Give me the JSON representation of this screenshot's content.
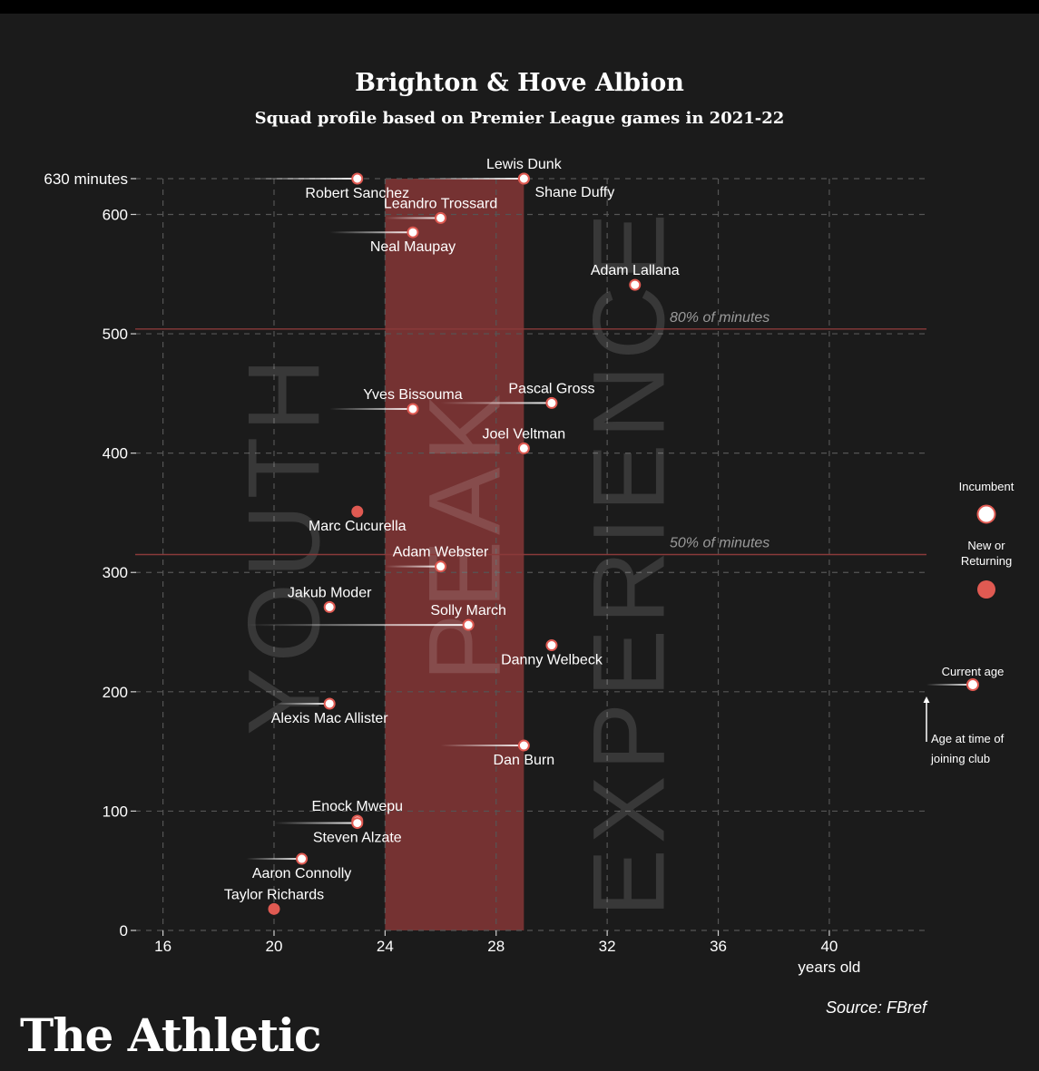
{
  "header": {
    "title": "Brighton & Hove Albion",
    "subtitle": "Squad profile based on Premier League games in 2021-22"
  },
  "footer": {
    "source": "Source: FBref",
    "brand": "The Athletic"
  },
  "colors": {
    "background": "#1b1b1b",
    "peak_band": "#7a3434",
    "new_marker": "#e05a52",
    "threshold_line": "#8a3a3a",
    "grid": "#555555"
  },
  "legend": {
    "incumbent": "Incumbent",
    "new_or_returning": [
      "New or",
      "Returning"
    ],
    "current_age": "Current age",
    "joining_age": [
      "Age at time of",
      "joining club"
    ]
  },
  "chart_data": {
    "type": "scatter",
    "title": "Brighton & Hove Albion",
    "subtitle": "Squad profile based on Premier League games in 2021-22",
    "xlabel": "years old",
    "ylabel": "",
    "xlim": [
      15,
      43.5
    ],
    "ylim": [
      0,
      630
    ],
    "x_ticks": [
      16,
      20,
      24,
      28,
      32,
      36,
      40
    ],
    "y_ticks": [
      0,
      100,
      200,
      300,
      400,
      500,
      600
    ],
    "y_top_label": "630 minutes",
    "y_top_value": 630,
    "grid": true,
    "peak_band": {
      "from": 24,
      "to": 29
    },
    "zones": [
      "YOUTH",
      "PEAK",
      "EXPERIENCE"
    ],
    "thresholds": [
      {
        "label": "80% of minutes",
        "value": 504
      },
      {
        "label": "50% of minutes",
        "value": 315
      }
    ],
    "players": [
      {
        "name": "Lewis Dunk",
        "age": 29,
        "joined_age": 29,
        "minutes": 630,
        "new": true,
        "label_pos": "above"
      },
      {
        "name": "Robert Sanchez",
        "age": 23,
        "joined_age": 19,
        "minutes": 630,
        "new": false,
        "label_pos": "below"
      },
      {
        "name": "Shane Duffy",
        "age": 29,
        "joined_age": 25,
        "minutes": 630,
        "new": false,
        "label_pos": "below-right"
      },
      {
        "name": "Leandro Trossard",
        "age": 26,
        "joined_age": 24,
        "minutes": 597,
        "new": false,
        "label_pos": "above"
      },
      {
        "name": "Neal Maupay",
        "age": 25,
        "joined_age": 22,
        "minutes": 585,
        "new": false,
        "label_pos": "below"
      },
      {
        "name": "Adam Lallana",
        "age": 33,
        "joined_age": 33,
        "minutes": 541,
        "new": false,
        "label_pos": "above"
      },
      {
        "name": "Pascal Gross",
        "age": 30,
        "joined_age": 26,
        "minutes": 442,
        "new": false,
        "label_pos": "above"
      },
      {
        "name": "Yves Bissouma",
        "age": 25,
        "joined_age": 22,
        "minutes": 437,
        "new": false,
        "label_pos": "above"
      },
      {
        "name": "Joel Veltman",
        "age": 29,
        "joined_age": 29,
        "minutes": 404,
        "new": false,
        "label_pos": "above"
      },
      {
        "name": "Marc Cucurella",
        "age": 23,
        "joined_age": 23,
        "minutes": 351,
        "new": true,
        "label_pos": "below"
      },
      {
        "name": "Adam Webster",
        "age": 26,
        "joined_age": 24,
        "minutes": 305,
        "new": false,
        "label_pos": "above"
      },
      {
        "name": "Jakub Moder",
        "age": 22,
        "joined_age": 22,
        "minutes": 271,
        "new": false,
        "label_pos": "above"
      },
      {
        "name": "Solly March",
        "age": 27,
        "joined_age": 19,
        "minutes": 256,
        "new": false,
        "label_pos": "above"
      },
      {
        "name": "Danny Welbeck",
        "age": 30,
        "joined_age": 30,
        "minutes": 239,
        "new": false,
        "label_pos": "below"
      },
      {
        "name": "Alexis Mac Allister",
        "age": 22,
        "joined_age": 20,
        "minutes": 190,
        "new": false,
        "label_pos": "below"
      },
      {
        "name": "Dan Burn",
        "age": 29,
        "joined_age": 26,
        "minutes": 155,
        "new": false,
        "label_pos": "below"
      },
      {
        "name": "Enock Mwepu",
        "age": 23,
        "joined_age": 23,
        "minutes": 92,
        "new": false,
        "label_pos": "above"
      },
      {
        "name": "Steven Alzate",
        "age": 23,
        "joined_age": 20,
        "minutes": 90,
        "new": false,
        "label_pos": "below"
      },
      {
        "name": "Aaron Connolly",
        "age": 21,
        "joined_age": 19,
        "minutes": 60,
        "new": false,
        "label_pos": "below"
      },
      {
        "name": "Taylor Richards",
        "age": 20,
        "joined_age": 20,
        "minutes": 18,
        "new": true,
        "label_pos": "above"
      }
    ]
  }
}
